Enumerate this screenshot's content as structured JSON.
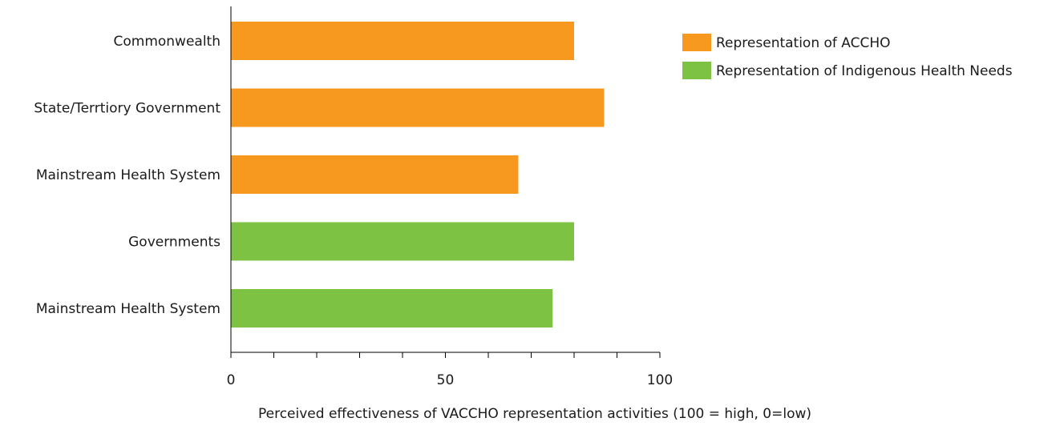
{
  "chart_data": {
    "type": "bar",
    "orientation": "horizontal",
    "categories": [
      "Commonwealth",
      "State/Terrtiory Government",
      "Mainstream Health System",
      "Governments",
      "Mainstream Health System"
    ],
    "values": [
      80,
      87,
      67,
      80,
      75
    ],
    "bar_series": [
      0,
      0,
      0,
      1,
      1
    ],
    "series": [
      {
        "name": "Representation of ACCHO",
        "color": "#f7991f"
      },
      {
        "name": "Representation of Indigenous Health Needs",
        "color": "#7dc242"
      }
    ],
    "xlabel": "Perceived effectiveness of VACCHO representation activities  (100 = high, 0=low)",
    "ylabel": "",
    "title": "",
    "xlim": [
      0,
      100
    ],
    "x_ticks": [
      0,
      50,
      100
    ],
    "x_minor_step": 10,
    "grid": false,
    "legend_position": "top-right"
  }
}
